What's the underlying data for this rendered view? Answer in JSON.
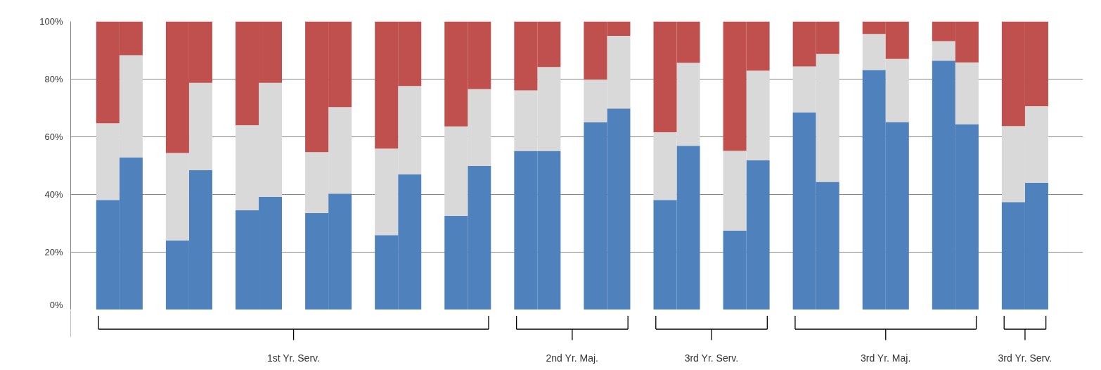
{
  "chart_data": {
    "type": "bar",
    "stacked": true,
    "categories": [
      null,
      null,
      null,
      null,
      null,
      null,
      null,
      null,
      null,
      null,
      null,
      null,
      null,
      null,
      null,
      null,
      null,
      null,
      null,
      null,
      null,
      null,
      null,
      null,
      null,
      null,
      null,
      null
    ],
    "series": [
      {
        "color": "#4f81bd",
        "values": [
          38.1,
          52.8,
          24.1,
          48.4,
          34.5,
          39.2,
          33.6,
          40.3,
          25.9,
          47.0,
          32.6,
          49.9,
          55.1,
          55.1,
          65.0,
          69.8,
          38.1,
          56.9,
          27.5,
          51.8,
          68.4,
          44.4,
          83.2,
          65.1,
          86.4,
          64.4,
          37.4,
          44.0
        ]
      },
      {
        "color": "#d9d9d9",
        "values": [
          26.6,
          35.5,
          30.3,
          30.3,
          29.5,
          39.5,
          21.1,
          30.0,
          30.0,
          30.6,
          31.0,
          26.6,
          21.0,
          29.1,
          14.8,
          25.2,
          23.5,
          28.8,
          27.6,
          31.1,
          16.0,
          44.3,
          12.5,
          21.9,
          6.8,
          21.4,
          26.3,
          26.6
        ]
      },
      {
        "color": "#c0504d",
        "values": [
          35.3,
          11.7,
          45.6,
          21.3,
          36.0,
          21.3,
          45.3,
          29.7,
          44.1,
          22.4,
          36.4,
          23.5,
          23.9,
          15.8,
          20.2,
          5.0,
          38.4,
          14.3,
          44.9,
          17.1,
          15.6,
          11.3,
          4.3,
          13.0,
          6.8,
          14.2,
          36.3,
          29.4
        ]
      }
    ],
    "ylim": [
      0,
      100
    ],
    "yticks": [
      {
        "value": 0,
        "label": "0%"
      },
      {
        "value": 20,
        "label": "20%"
      },
      {
        "value": 40,
        "label": "40%"
      },
      {
        "value": 60,
        "label": "60%"
      },
      {
        "value": 80,
        "label": "80%"
      },
      {
        "value": 100,
        "label": "100%"
      }
    ],
    "grid": "y",
    "annotations": [
      "1st Yr. Serv.",
      "2nd Yr. Maj.",
      "3rd Yr. Serv.",
      "3rd Yr. Maj.",
      "3rd Yr. Serv."
    ]
  }
}
